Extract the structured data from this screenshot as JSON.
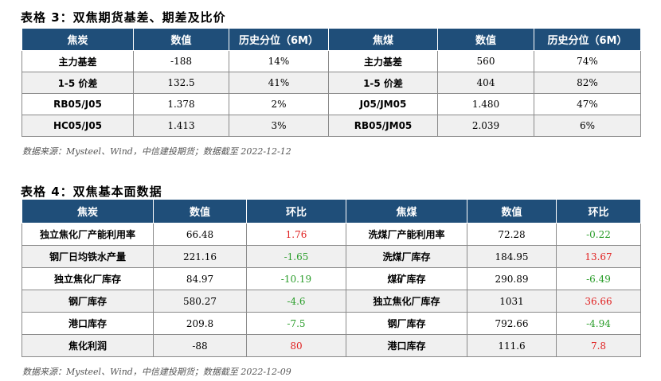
{
  "table1": {
    "title": "表格 3：双焦期货基差、期差及比价",
    "headers": [
      "焦炭",
      "数值",
      "历史分位（6M）",
      "焦煤",
      "数值",
      "历史分位（6M）"
    ],
    "rows": [
      [
        "主力基差",
        "-188",
        "14%",
        "主力基差",
        "560",
        "74%"
      ],
      [
        "1-5 价差",
        "132.5",
        "41%",
        "1-5 价差",
        "404",
        "82%"
      ],
      [
        "RB05/J05",
        "1.378",
        "2%",
        "J05/JM05",
        "1.480",
        "47%"
      ],
      [
        "HC05/J05",
        "1.413",
        "3%",
        "RB05/JM05",
        "2.039",
        "6%"
      ]
    ],
    "source": "数据来源：Mysteel、Wind，中信建投期货；数据截至 2022-12-12"
  },
  "table2": {
    "title": "表格 4：双焦基本面数据",
    "headers": [
      "焦炭",
      "数值",
      "环比",
      "焦煤",
      "数值",
      "环比"
    ],
    "rows": [
      [
        "独立焦化厂产能利用率",
        "66.48",
        "1.76",
        "洗煤厂产能利用率",
        "72.28",
        "-0.22"
      ],
      [
        "钢厂日均铁水产量",
        "221.16",
        "-1.65",
        "洗煤厂库存",
        "184.95",
        "13.67"
      ],
      [
        "独立焦化厂库存",
        "84.97",
        "-10.19",
        "煤矿库存",
        "290.89",
        "-6.49"
      ],
      [
        "钢厂库存",
        "580.27",
        "-4.6",
        "独立焦化厂库存",
        "1031",
        "36.66"
      ],
      [
        "港口库存",
        "209.8",
        "-7.5",
        "钢厂库存",
        "792.66",
        "-4.94"
      ],
      [
        "焦化利润",
        "-88",
        "80",
        "港口库存",
        "111.6",
        "7.8"
      ]
    ],
    "change_colors": [
      [
        "red",
        "green"
      ],
      [
        "green",
        "red"
      ],
      [
        "green",
        "green"
      ],
      [
        "green",
        "red"
      ],
      [
        "green",
        "green"
      ],
      [
        "red",
        "red"
      ]
    ],
    "source": "数据来源：Mysteel、Wind，中信建投期货；数据截至 2022-12-09"
  },
  "colors": {
    "header_bg": "#1f4e79",
    "header_text": "#ffffff",
    "positive": "#e02020",
    "negative": "#2a9d2a",
    "alt_row": "#f0f0f0"
  }
}
